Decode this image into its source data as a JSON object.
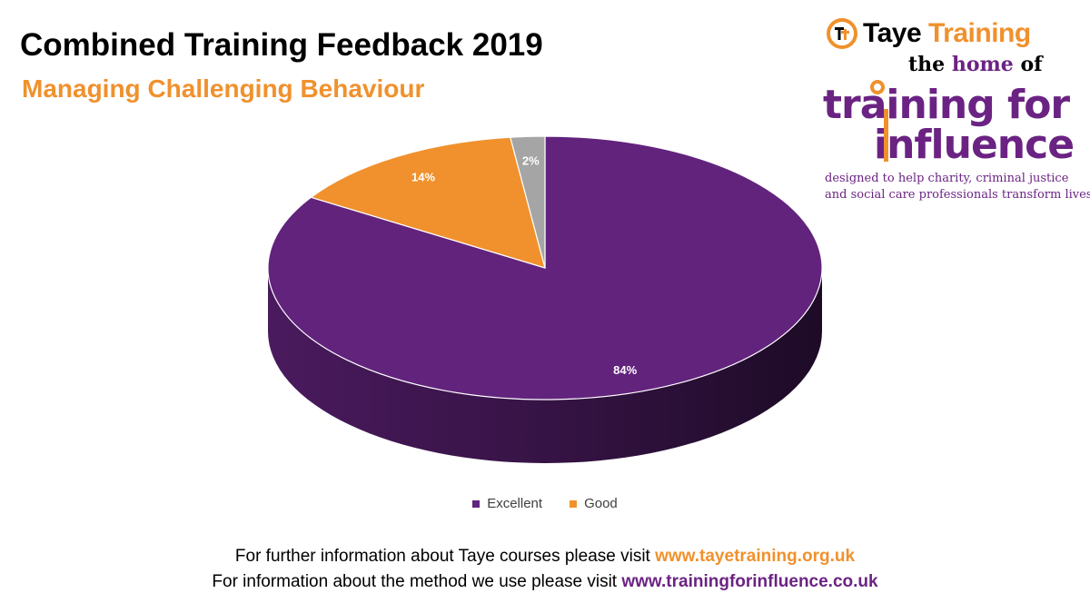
{
  "title": "Combined Training Feedback 2019",
  "subtitle": "Managing Challenging Behaviour",
  "logo": {
    "brand_icon": "tt-monogram-icon",
    "brand_name_1": "Taye",
    "brand_name_2": "Training",
    "home_of_1": "the",
    "home_of_2": "home",
    "home_of_3": "of",
    "tfi_line1": "training for",
    "tfi_line2": "influence",
    "tagline_1": "designed to help charity, criminal justice",
    "tagline_2": "and social care professionals transform lives"
  },
  "colors": {
    "excellent": "#62237d",
    "good": "#f0912d",
    "other": "#a5a5a5",
    "brand_orange": "#f0912d",
    "brand_purple": "#6b2383"
  },
  "chart_data": {
    "type": "pie",
    "style": "3d",
    "slices": [
      {
        "label": "Excellent",
        "value": 84,
        "data_label": "84%",
        "color": "#62237d"
      },
      {
        "label": "Good",
        "value": 14,
        "data_label": "14%",
        "color": "#f0912d"
      },
      {
        "label": "",
        "value": 2,
        "data_label": "2%",
        "color": "#a5a5a5"
      }
    ],
    "legend": [
      "Excellent",
      "Good"
    ],
    "legend_position": "bottom"
  },
  "footer": {
    "line1_text": "For further information about Taye courses please visit",
    "line1_link": "www.tayetraining.org.uk",
    "line2_text": "For information about the method we use please visit",
    "line2_link": "www.trainingforinfluence.co.uk"
  }
}
